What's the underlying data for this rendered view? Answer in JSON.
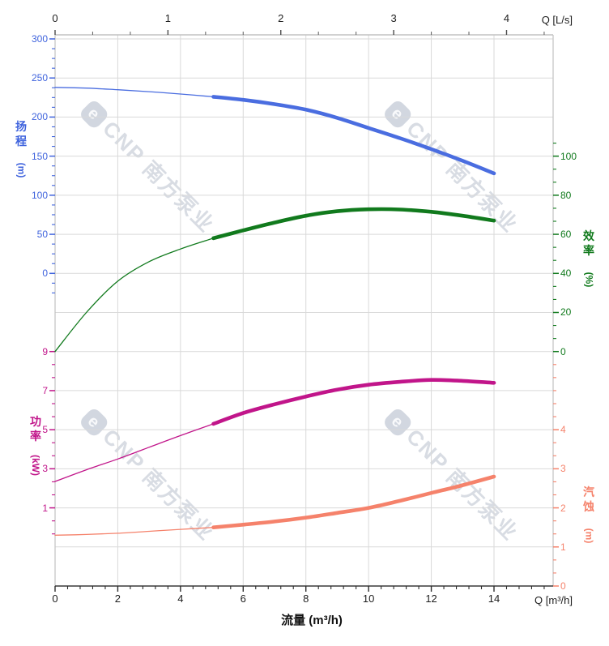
{
  "page": {
    "background": "#ffffff"
  },
  "chart": {
    "watermark": {
      "logo": "e",
      "text": "CNP 南方泵业"
    }
  },
  "chart_data": {
    "type": "line",
    "title": "",
    "grid": true,
    "x_axis_top": {
      "label": "Q [L/s]",
      "unit": "L/s",
      "range": [
        0,
        4.42
      ],
      "major_ticks": [
        0,
        1,
        2,
        3,
        4
      ],
      "minor_step": 0.33333,
      "minor_max": 4.3333,
      "to_m3h": 3.6
    },
    "x_axis_bottom": {
      "label": "Q [m³/h]",
      "title": "流量 (m³/h)",
      "unit": "m³/h",
      "range": [
        0,
        15.9
      ],
      "major_ticks": [
        0,
        2,
        4,
        6,
        8,
        10,
        12,
        14
      ],
      "minor_step": 0.4,
      "minor_max": 15.6
    },
    "y_axes": [
      {
        "id": "head",
        "name_lines": [
          "扬",
          "程"
        ],
        "unit": "(m)",
        "side": "left",
        "color": "#3f63dd",
        "major_ticks": [
          300,
          250,
          200,
          150,
          100,
          50,
          0
        ],
        "minor_step": 12.5,
        "minor_from": 300,
        "minor_to": -25,
        "scale": {
          "v0": 300,
          "r0": 0,
          "vpr": 50
        }
      },
      {
        "id": "efficiency",
        "name_lines": [
          "效",
          "率"
        ],
        "unit": "(%)",
        "side": "right",
        "color": "#117a1d",
        "major_ticks": [
          100,
          80,
          60,
          40,
          20,
          0
        ],
        "minor_step": 6.66667,
        "minor_from": 106.667,
        "minor_to": 0,
        "scale": {
          "v0": 100,
          "r0": 3,
          "vpr": 20
        }
      },
      {
        "id": "power",
        "name_lines": [
          "功",
          "率"
        ],
        "unit": "(kW)",
        "side": "left",
        "color": "#c1158a",
        "major_ticks": [
          9,
          7,
          5,
          3,
          1
        ],
        "minor_step": 0.66667,
        "minor_from": 9,
        "minor_to": -0.34,
        "scale": {
          "v0": 9,
          "r0": 8,
          "vpr": 2
        }
      },
      {
        "id": "npsh",
        "name_lines": [
          "汽",
          "蚀"
        ],
        "unit": "(m)",
        "side": "right",
        "color": "#f5826b",
        "major_ticks": [
          4,
          3,
          2,
          1,
          0
        ],
        "minor_step": 0.33333,
        "minor_from": 5.6667,
        "minor_to": 0,
        "scale": {
          "v0": 4,
          "r0": 10,
          "vpr": 1
        }
      }
    ],
    "series": [
      {
        "id": "head-curve",
        "axis": "head",
        "color": "#4a6de0",
        "thin_until": 5.05,
        "x": [
          0,
          1,
          2,
          3,
          4,
          5.05,
          6,
          7,
          8,
          9,
          10,
          11,
          12,
          13,
          14
        ],
        "y": [
          238,
          237,
          235,
          232.5,
          229.5,
          226,
          222,
          216.5,
          209.5,
          199,
          186,
          173,
          159,
          144,
          128
        ]
      },
      {
        "id": "efficiency-curve",
        "axis": "efficiency",
        "color": "#117a1d",
        "thin_until": 5.05,
        "x": [
          0,
          1,
          2,
          3,
          4,
          5.05,
          6,
          7,
          8,
          9,
          10,
          11,
          12,
          13,
          14
        ],
        "y": [
          0,
          20,
          36,
          46,
          52.5,
          58,
          62,
          66,
          69.5,
          71.8,
          72.8,
          72.7,
          71.5,
          69.5,
          67
        ]
      },
      {
        "id": "power-curve",
        "axis": "power",
        "color": "#c1158a",
        "thin_until": 5.05,
        "x": [
          0,
          1,
          2,
          3,
          4,
          5.05,
          6,
          7,
          8,
          9,
          10,
          11,
          12,
          13,
          14
        ],
        "y": [
          2.35,
          2.95,
          3.5,
          4.1,
          4.7,
          5.3,
          5.85,
          6.3,
          6.7,
          7.05,
          7.3,
          7.45,
          7.55,
          7.5,
          7.4
        ]
      },
      {
        "id": "npsh-curve",
        "axis": "npsh",
        "color": "#f5826b",
        "thin_until": 5.05,
        "x": [
          0,
          1,
          2,
          3,
          4,
          5.05,
          6,
          7,
          8,
          9,
          10,
          11,
          12,
          13,
          14
        ],
        "y": [
          1.3,
          1.32,
          1.35,
          1.4,
          1.45,
          1.5,
          1.57,
          1.65,
          1.75,
          1.87,
          2.0,
          2.18,
          2.38,
          2.58,
          2.8
        ]
      }
    ]
  }
}
